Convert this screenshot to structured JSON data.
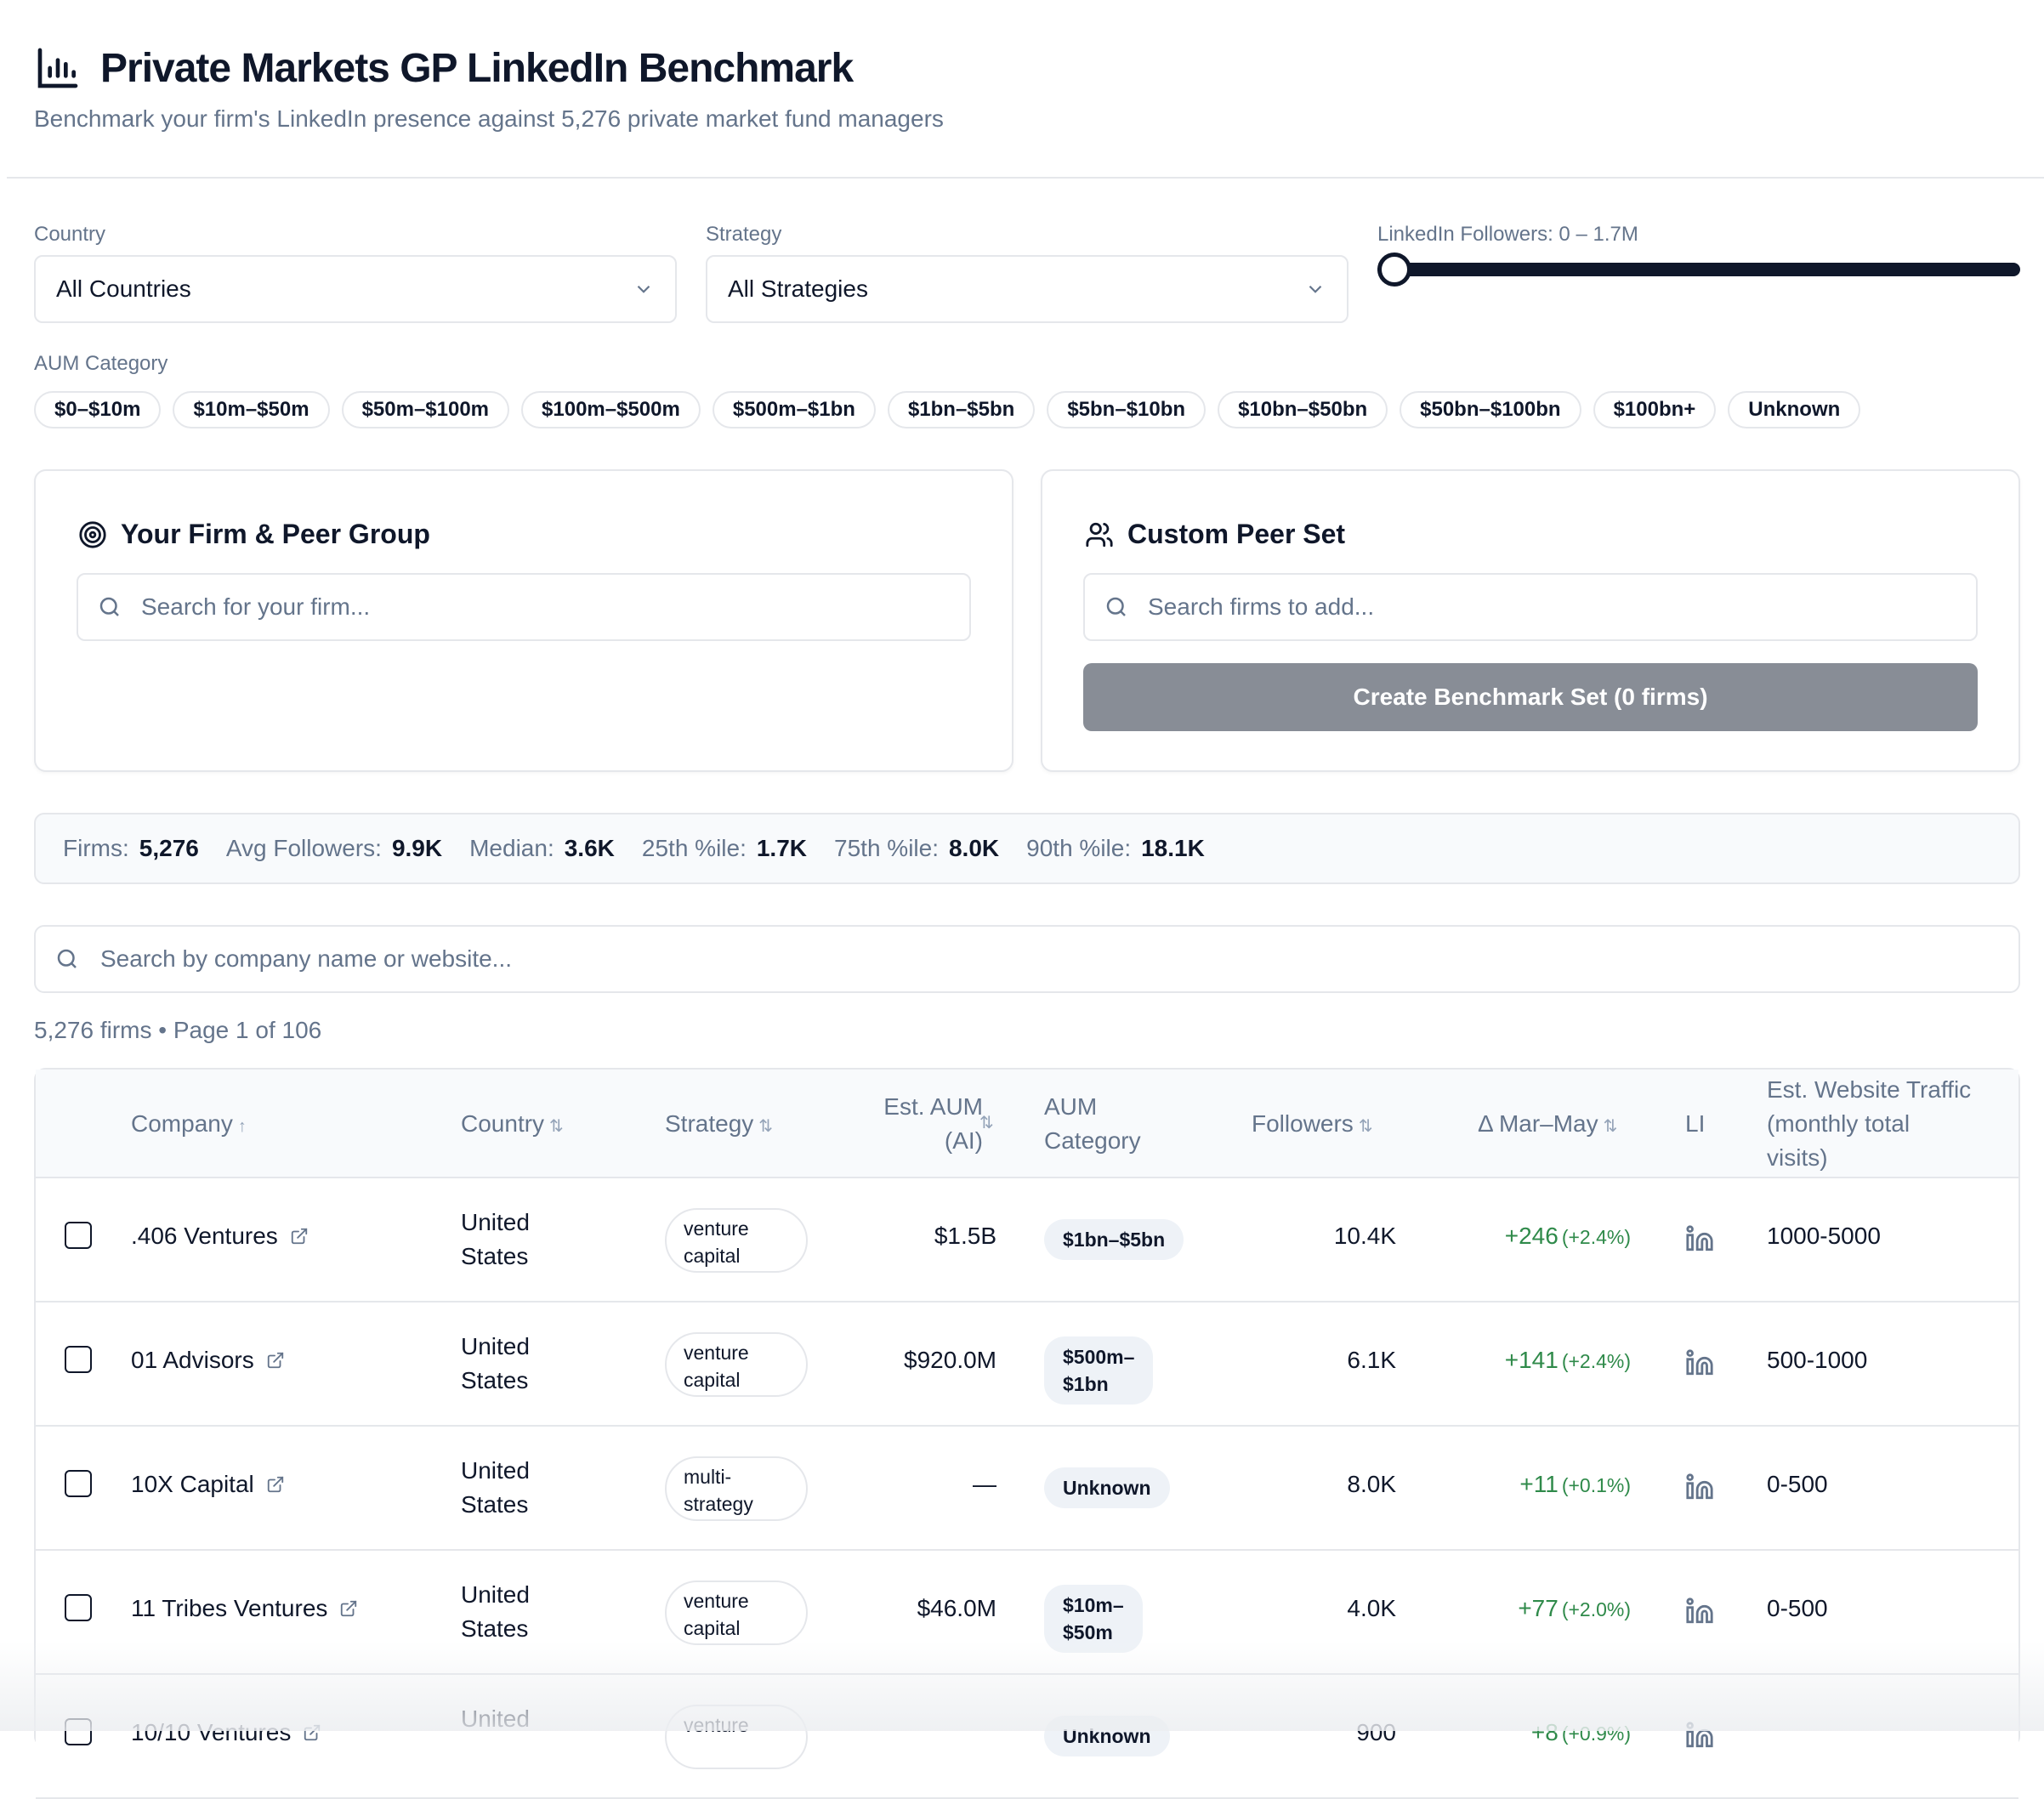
{
  "header": {
    "title": "Private Markets GP LinkedIn Benchmark",
    "subtitle": "Benchmark your firm's LinkedIn presence against 5,276 private market fund managers",
    "icon": "bar-chart-icon"
  },
  "filters": {
    "country_label": "Country",
    "country_value": "All Countries",
    "strategy_label": "Strategy",
    "strategy_value": "All Strategies",
    "followers_label": "LinkedIn Followers: 0 – 1.7M",
    "aum_label": "AUM Category",
    "aum_chips": [
      "$0–$10m",
      "$10m–$50m",
      "$50m–$100m",
      "$100m–$500m",
      "$500m–$1bn",
      "$1bn–$5bn",
      "$5bn–$10bn",
      "$10bn–$50bn",
      "$50bn–$100bn",
      "$100bn+",
      "Unknown"
    ]
  },
  "firm_card": {
    "title": "Your Firm & Peer Group",
    "search_placeholder": "Search for your firm..."
  },
  "peer_card": {
    "title": "Custom Peer Set",
    "search_placeholder": "Search firms to add...",
    "button_label": "Create Benchmark Set (0 firms)"
  },
  "stats": [
    {
      "label": "Firms:",
      "value": "5,276"
    },
    {
      "label": "Avg Followers:",
      "value": "9.9K"
    },
    {
      "label": "Median:",
      "value": "3.6K"
    },
    {
      "label": "25th %ile:",
      "value": "1.7K"
    },
    {
      "label": "75th %ile:",
      "value": "8.0K"
    },
    {
      "label": "90th %ile:",
      "value": "18.1K"
    }
  ],
  "main_search": {
    "placeholder": "Search by company name or website..."
  },
  "results": {
    "summary": "5,276 firms • Page 1 of 106"
  },
  "table": {
    "headers": {
      "company": "Company",
      "country": "Country",
      "strategy": "Strategy",
      "aum_1": "Est. AUM",
      "aum_2": "(AI)",
      "category_1": "AUM",
      "category_2": "Category",
      "followers": "Followers",
      "delta": "Δ Mar–May",
      "li": "LI",
      "traffic_1": "Est. Website Traffic",
      "traffic_2": "(monthly total",
      "traffic_3": "visits)"
    },
    "sort_up": "↑",
    "sort_both": "⇅",
    "rows": [
      {
        "company": ".406 Ventures",
        "country_1": "United",
        "country_2": "States",
        "strategy_1": "venture",
        "strategy_2": "capital",
        "aum": "$1.5B",
        "category_1": "$1bn–$5bn",
        "category_2": "",
        "followers": "10.4K",
        "delta": "+246",
        "delta_pct": "(+2.4%)",
        "traffic": "1000-5000"
      },
      {
        "company": "01 Advisors",
        "country_1": "United",
        "country_2": "States",
        "strategy_1": "venture",
        "strategy_2": "capital",
        "aum": "$920.0M",
        "category_1": "$500m–",
        "category_2": "$1bn",
        "followers": "6.1K",
        "delta": "+141",
        "delta_pct": "(+2.4%)",
        "traffic": "500-1000"
      },
      {
        "company": "10X Capital",
        "country_1": "United",
        "country_2": "States",
        "strategy_1": "multi-",
        "strategy_2": "strategy",
        "aum": "—",
        "category_1": "Unknown",
        "category_2": "",
        "followers": "8.0K",
        "delta": "+11",
        "delta_pct": "(+0.1%)",
        "traffic": "0-500"
      },
      {
        "company": "11 Tribes Ventures",
        "country_1": "United",
        "country_2": "States",
        "strategy_1": "venture",
        "strategy_2": "capital",
        "aum": "$46.0M",
        "category_1": "$10m–",
        "category_2": "$50m",
        "followers": "4.0K",
        "delta": "+77",
        "delta_pct": "(+2.0%)",
        "traffic": "0-500"
      },
      {
        "company": "10/10 Ventures",
        "country_1": "United",
        "country_2": "",
        "strategy_1": "venture",
        "strategy_2": "",
        "aum": "",
        "category_1": "Unknown",
        "category_2": "",
        "followers": "900",
        "delta": "+8",
        "delta_pct": "(+0.9%)",
        "traffic": ""
      }
    ]
  },
  "colors": {
    "accent": "#0f172a",
    "muted": "#64748b",
    "positive": "#2f8a4a",
    "button_disabled": "#888d96"
  }
}
